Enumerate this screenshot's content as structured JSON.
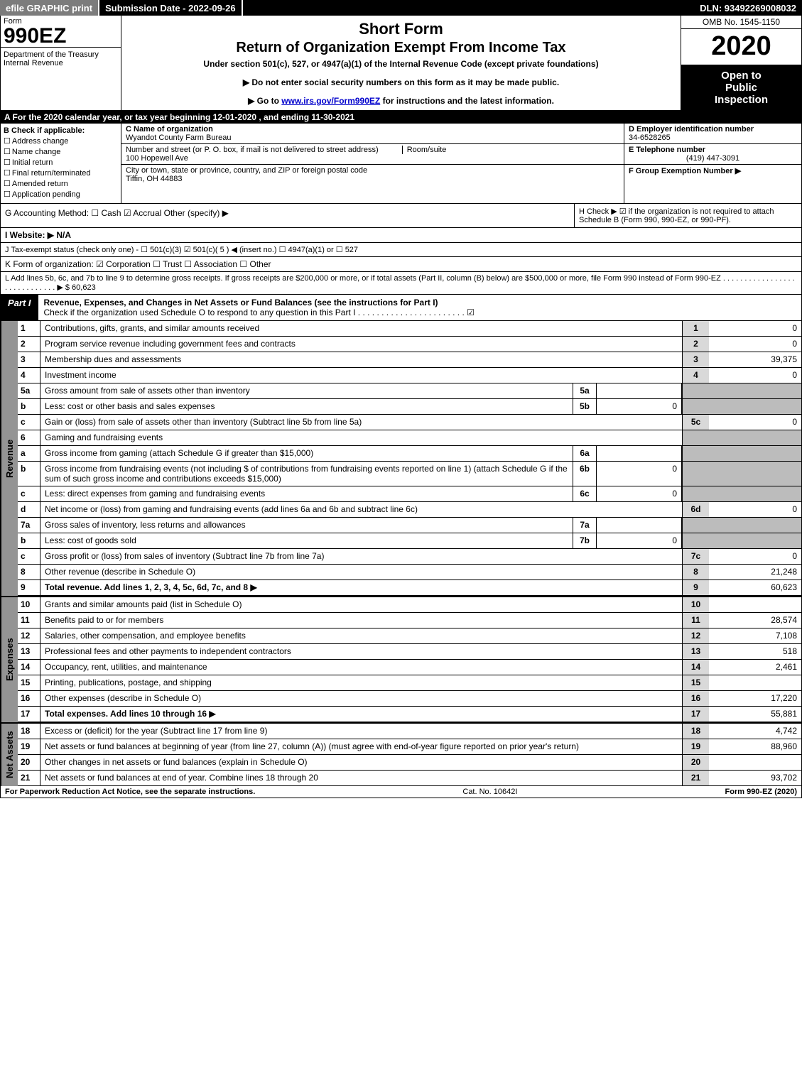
{
  "topbar": {
    "efile": "efile GRAPHIC print",
    "submission": "Submission Date - 2022-09-26",
    "dln": "DLN: 93492269008032"
  },
  "header": {
    "form_label": "Form",
    "form_number": "990EZ",
    "dept1": "Department of the Treasury",
    "dept2": "Internal Revenue",
    "title1": "Short Form",
    "title2": "Return of Organization Exempt From Income Tax",
    "subtitle": "Under section 501(c), 527, or 4947(a)(1) of the Internal Revenue Code (except private foundations)",
    "note1": "▶ Do not enter social security numbers on this form as it may be made public.",
    "note2_pre": "▶ Go to ",
    "note2_link": "www.irs.gov/Form990EZ",
    "note2_post": " for instructions and the latest information.",
    "omb": "OMB No. 1545-1150",
    "year": "2020",
    "inspection1": "Open to",
    "inspection2": "Public",
    "inspection3": "Inspection"
  },
  "line_a": "A   For the 2020 calendar year, or tax year beginning 12-01-2020 , and ending 11-30-2021",
  "box_b": {
    "label": "B  Check if applicable:",
    "items": [
      "Address change",
      "Name change",
      "Initial return",
      "Final return/terminated",
      "Amended return",
      "Application pending"
    ]
  },
  "box_c": {
    "label": "C Name of organization",
    "name": "Wyandot County Farm Bureau",
    "street_label": "Number and street (or P. O. box, if mail is not delivered to street address)",
    "room_label": "Room/suite",
    "street": "100 Hopewell Ave",
    "city_label": "City or town, state or province, country, and ZIP or foreign postal code",
    "city": "Tiffin, OH  44883"
  },
  "box_d": {
    "label": "D Employer identification number",
    "value": "34-6528265"
  },
  "box_e": {
    "label": "E Telephone number",
    "value": "(419) 447-3091"
  },
  "box_f": {
    "label": "F Group Exemption Number   ▶"
  },
  "line_g": "G Accounting Method:   ☐ Cash  ☑ Accrual  Other (specify) ▶",
  "line_h": "H  Check ▶  ☑  if the organization is not required to attach Schedule B (Form 990, 990-EZ, or 990-PF).",
  "line_i": "I Website: ▶ N/A",
  "line_j": "J Tax-exempt status (check only one) - ☐ 501(c)(3) ☑ 501(c)( 5 ) ◀ (insert no.) ☐ 4947(a)(1) or ☐ 527",
  "line_k": "K Form of organization:  ☑ Corporation  ☐ Trust  ☐ Association  ☐ Other",
  "line_l": "L Add lines 5b, 6c, and 7b to line 9 to determine gross receipts. If gross receipts are $200,000 or more, or if total assets (Part II, column (B) below) are $500,000 or more, file Form 990 instead of Form 990-EZ  .  .  .  .  .  .  .  .  .  .  .  .  .  .  .  .  .  .  .  .  .  .  .  .  .  .  .  .  . ▶ $ 60,623",
  "part1": {
    "label": "Part I",
    "title": "Revenue, Expenses, and Changes in Net Assets or Fund Balances (see the instructions for Part I)",
    "sub": "Check if the organization used Schedule O to respond to any question in this Part I  .  .  .  .  .  .  .  .  .  .  .  .  .  .  .  .  .  .  .  .  .  .  .  ☑"
  },
  "sections": {
    "revenue_label": "Revenue",
    "expenses_label": "Expenses",
    "netassets_label": "Net Assets"
  },
  "rows": [
    {
      "n": "1",
      "desc": "Contributions, gifts, grants, and similar amounts received",
      "ln": "1",
      "amt": "0"
    },
    {
      "n": "2",
      "desc": "Program service revenue including government fees and contracts",
      "ln": "2",
      "amt": "0"
    },
    {
      "n": "3",
      "desc": "Membership dues and assessments",
      "ln": "3",
      "amt": "39,375"
    },
    {
      "n": "4",
      "desc": "Investment income",
      "ln": "4",
      "amt": "0"
    },
    {
      "n": "5a",
      "desc": "Gross amount from sale of assets other than inventory",
      "subn": "5a",
      "subv": "",
      "shade": true
    },
    {
      "n": "b",
      "desc": "Less: cost or other basis and sales expenses",
      "subn": "5b",
      "subv": "0",
      "shade": true
    },
    {
      "n": "c",
      "desc": "Gain or (loss) from sale of assets other than inventory (Subtract line 5b from line 5a)",
      "ln": "5c",
      "amt": "0"
    },
    {
      "n": "6",
      "desc": "Gaming and fundraising events",
      "shade": true,
      "noamt": true
    },
    {
      "n": "a",
      "desc": "Gross income from gaming (attach Schedule G if greater than $15,000)",
      "subn": "6a",
      "subv": "",
      "shade": true
    },
    {
      "n": "b",
      "desc": "Gross income from fundraising events (not including $            of contributions from fundraising events reported on line 1) (attach Schedule G if the sum of such gross income and contributions exceeds $15,000)",
      "subn": "6b",
      "subv": "0",
      "shade": true
    },
    {
      "n": "c",
      "desc": "Less: direct expenses from gaming and fundraising events",
      "subn": "6c",
      "subv": "0",
      "shade": true
    },
    {
      "n": "d",
      "desc": "Net income or (loss) from gaming and fundraising events (add lines 6a and 6b and subtract line 6c)",
      "ln": "6d",
      "amt": "0"
    },
    {
      "n": "7a",
      "desc": "Gross sales of inventory, less returns and allowances",
      "subn": "7a",
      "subv": "",
      "shade": true
    },
    {
      "n": "b",
      "desc": "Less: cost of goods sold",
      "subn": "7b",
      "subv": "0",
      "shade": true
    },
    {
      "n": "c",
      "desc": "Gross profit or (loss) from sales of inventory (Subtract line 7b from line 7a)",
      "ln": "7c",
      "amt": "0"
    },
    {
      "n": "8",
      "desc": "Other revenue (describe in Schedule O)",
      "ln": "8",
      "amt": "21,248"
    },
    {
      "n": "9",
      "desc": "Total revenue. Add lines 1, 2, 3, 4, 5c, 6d, 7c, and 8   ▶",
      "ln": "9",
      "amt": "60,623",
      "bold": true
    }
  ],
  "exp_rows": [
    {
      "n": "10",
      "desc": "Grants and similar amounts paid (list in Schedule O)",
      "ln": "10",
      "amt": ""
    },
    {
      "n": "11",
      "desc": "Benefits paid to or for members",
      "ln": "11",
      "amt": "28,574"
    },
    {
      "n": "12",
      "desc": "Salaries, other compensation, and employee benefits",
      "ln": "12",
      "amt": "7,108"
    },
    {
      "n": "13",
      "desc": "Professional fees and other payments to independent contractors",
      "ln": "13",
      "amt": "518"
    },
    {
      "n": "14",
      "desc": "Occupancy, rent, utilities, and maintenance",
      "ln": "14",
      "amt": "2,461"
    },
    {
      "n": "15",
      "desc": "Printing, publications, postage, and shipping",
      "ln": "15",
      "amt": ""
    },
    {
      "n": "16",
      "desc": "Other expenses (describe in Schedule O)",
      "ln": "16",
      "amt": "17,220"
    },
    {
      "n": "17",
      "desc": "Total expenses. Add lines 10 through 16   ▶",
      "ln": "17",
      "amt": "55,881",
      "bold": true
    }
  ],
  "na_rows": [
    {
      "n": "18",
      "desc": "Excess or (deficit) for the year (Subtract line 17 from line 9)",
      "ln": "18",
      "amt": "4,742"
    },
    {
      "n": "19",
      "desc": "Net assets or fund balances at beginning of year (from line 27, column (A)) (must agree with end-of-year figure reported on prior year's return)",
      "ln": "19",
      "amt": "88,960"
    },
    {
      "n": "20",
      "desc": "Other changes in net assets or fund balances (explain in Schedule O)",
      "ln": "20",
      "amt": ""
    },
    {
      "n": "21",
      "desc": "Net assets or fund balances at end of year. Combine lines 18 through 20",
      "ln": "21",
      "amt": "93,702"
    }
  ],
  "footer": {
    "left": "For Paperwork Reduction Act Notice, see the separate instructions.",
    "mid": "Cat. No. 10642I",
    "right": "Form 990-EZ (2020)"
  }
}
